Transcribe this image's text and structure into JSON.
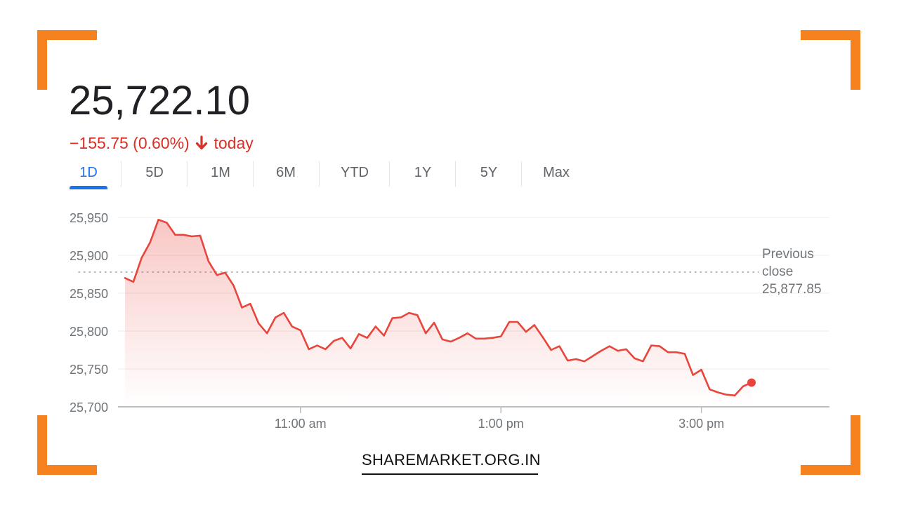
{
  "quote": {
    "price": "25,722.10",
    "change_text": "−155.75 (0.60%)",
    "change_suffix": "today",
    "down_color": "#d93025"
  },
  "tabs": [
    {
      "label": "1D",
      "active": true
    },
    {
      "label": "5D"
    },
    {
      "label": "1M"
    },
    {
      "label": "6M"
    },
    {
      "label": "YTD"
    },
    {
      "label": "1Y"
    },
    {
      "label": "5Y"
    },
    {
      "label": "Max"
    }
  ],
  "previous_close": {
    "label_line1": "Previous",
    "label_line2": "close",
    "value": "25,877.85"
  },
  "brand": "SHAREMARKET.ORG.IN",
  "accent_color": "#f6821f",
  "chart_data": {
    "type": "area",
    "title": "",
    "xlabel": "",
    "ylabel": "",
    "ylim": [
      25700,
      25950
    ],
    "yticks": [
      25700,
      25750,
      25800,
      25850,
      25900,
      25950
    ],
    "ytick_labels": [
      "25,700",
      "25,750",
      "25,800",
      "25,850",
      "25,900",
      "25,950"
    ],
    "xlim": [
      "9:15",
      "15:30"
    ],
    "xticks": [
      "11:00",
      "13:00",
      "15:00"
    ],
    "xtick_labels": [
      "11:00 am",
      "1:00 pm",
      "3:00 pm"
    ],
    "grid": true,
    "reference_line": 25877.85,
    "series": [
      {
        "color": "#e8453c",
        "x": [
          "9:15",
          "9:20",
          "9:25",
          "9:30",
          "9:35",
          "9:40",
          "9:45",
          "9:50",
          "9:55",
          "10:00",
          "10:05",
          "10:10",
          "10:15",
          "10:20",
          "10:25",
          "10:30",
          "10:35",
          "10:40",
          "10:45",
          "10:50",
          "10:55",
          "11:00",
          "11:05",
          "11:10",
          "11:15",
          "11:20",
          "11:25",
          "11:30",
          "11:35",
          "11:40",
          "11:45",
          "11:50",
          "11:55",
          "12:00",
          "12:05",
          "12:10",
          "12:15",
          "12:20",
          "12:25",
          "12:30",
          "12:35",
          "12:40",
          "12:45",
          "12:50",
          "12:55",
          "13:00",
          "13:05",
          "13:10",
          "13:15",
          "13:20",
          "13:25",
          "13:30",
          "13:35",
          "13:40",
          "13:45",
          "13:50",
          "13:55",
          "14:00",
          "14:05",
          "14:10",
          "14:15",
          "14:20",
          "14:25",
          "14:30",
          "14:35",
          "14:40",
          "14:45",
          "14:50",
          "14:55",
          "15:00",
          "15:05",
          "15:10",
          "15:15",
          "15:20",
          "15:25",
          "15:30"
        ],
        "values": [
          25870,
          25865,
          25897,
          25917,
          25947,
          25943,
          25927,
          25927,
          25925,
          25926,
          25892,
          25874,
          25877,
          25860,
          25831,
          25836,
          25810,
          25797,
          25818,
          25824,
          25806,
          25801,
          25776,
          25781,
          25776,
          25787,
          25791,
          25777,
          25796,
          25791,
          25806,
          25794,
          25817,
          25818,
          25824,
          25821,
          25797,
          25811,
          25789,
          25786,
          25791,
          25797,
          25790,
          25790,
          25791,
          25793,
          25812,
          25812,
          25799,
          25808,
          25792,
          25775,
          25780,
          25761,
          25763,
          25760,
          25767,
          25774,
          25780,
          25774,
          25776,
          25764,
          25760,
          25781,
          25780,
          25772,
          25772,
          25770,
          25742,
          25749,
          25723,
          25719,
          25716,
          25715,
          25727,
          25732
        ]
      }
    ]
  }
}
